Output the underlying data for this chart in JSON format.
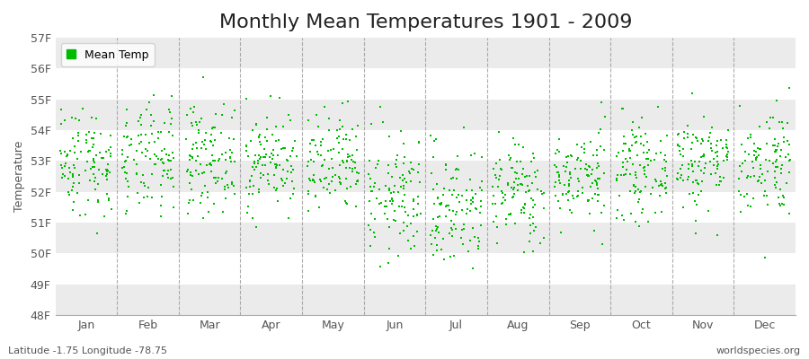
{
  "title": "Monthly Mean Temperatures 1901 - 2009",
  "ylabel": "Temperature",
  "months": [
    "Jan",
    "Feb",
    "Mar",
    "Apr",
    "May",
    "Jun",
    "Jul",
    "Aug",
    "Sep",
    "Oct",
    "Nov",
    "Dec"
  ],
  "dot_color": "#00BB00",
  "dot_size": 3,
  "ylim_min": 48,
  "ylim_max": 57,
  "yticks": [
    48,
    49,
    50,
    51,
    52,
    53,
    54,
    55,
    56,
    57
  ],
  "ytick_labels": [
    "48F",
    "49F",
    "50F",
    "51F",
    "52F",
    "53F",
    "54F",
    "55F",
    "56F",
    "57F"
  ],
  "background_color": "#FFFFFF",
  "band_colors": [
    "#EBEBEB",
    "#FFFFFF"
  ],
  "legend_label": "Mean Temp",
  "footer_left": "Latitude -1.75 Longitude -78.75",
  "footer_right": "worldspecies.org",
  "title_fontsize": 16,
  "axis_label_fontsize": 9,
  "tick_fontsize": 9,
  "footer_fontsize": 8,
  "monthly_centers": [
    53.0,
    53.0,
    53.1,
    53.0,
    52.8,
    51.8,
    51.5,
    52.0,
    52.5,
    52.7,
    53.0,
    53.0
  ],
  "monthly_stds": [
    0.9,
    0.9,
    0.85,
    0.8,
    0.85,
    1.0,
    1.0,
    0.85,
    0.75,
    0.75,
    0.8,
    0.9
  ],
  "n_years": 109,
  "random_seed": 42
}
